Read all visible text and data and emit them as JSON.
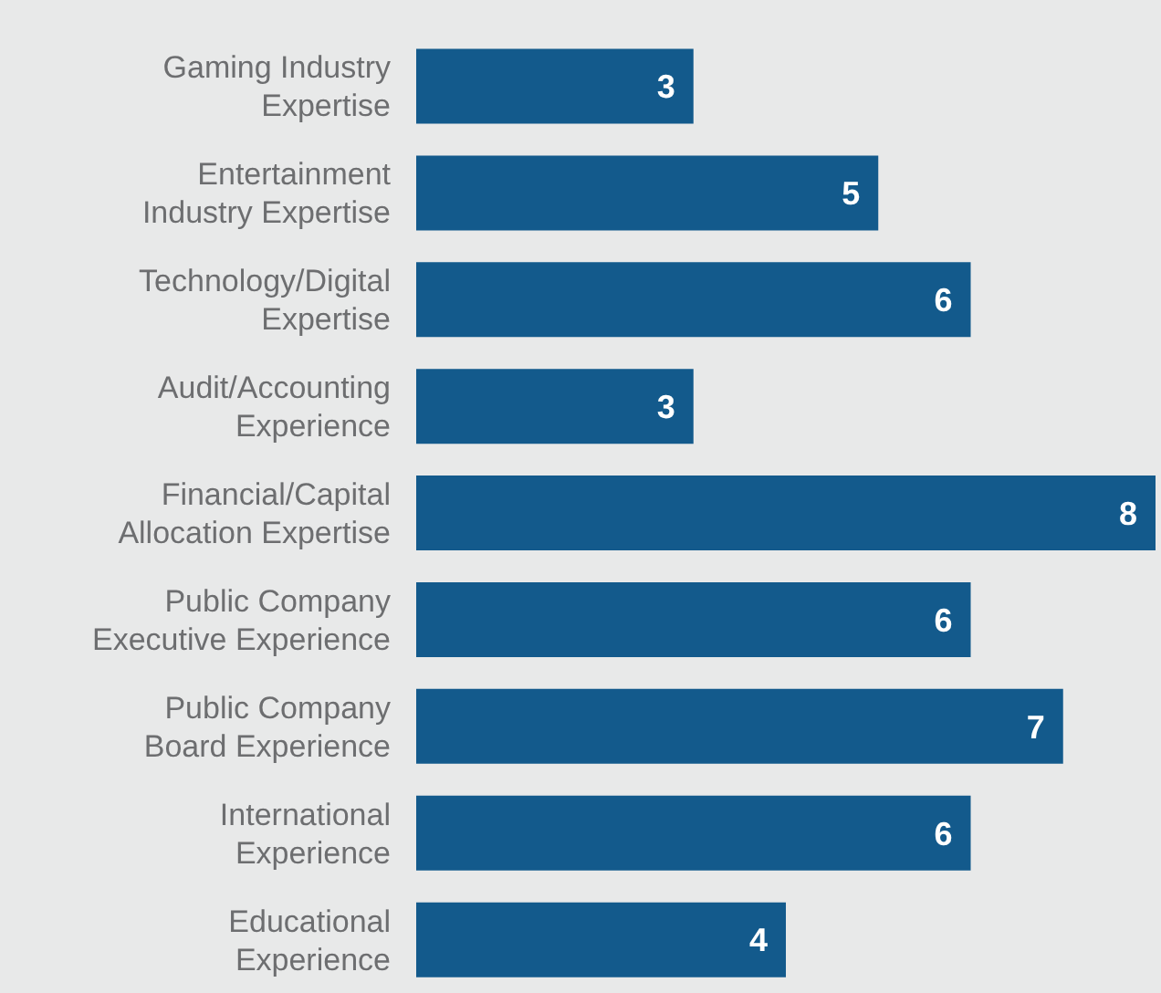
{
  "chart_data": {
    "type": "bar",
    "orientation": "horizontal",
    "categories": [
      "Gaming Industry\nExpertise",
      "Entertainment\nIndustry Expertise",
      "Technology/Digital\nExpertise",
      "Audit/Accounting\nExperience",
      "Financial/Capital\nAllocation Expertise",
      "Public Company\nExecutive Experience",
      "Public Company\nBoard Experience",
      "International\nExperience",
      "Educational\nExperience"
    ],
    "values": [
      3,
      5,
      6,
      3,
      8,
      6,
      7,
      6,
      4
    ],
    "color": "#135a8c",
    "data_labels": true,
    "xlim": [
      0,
      8
    ],
    "tick_labels": "y"
  }
}
